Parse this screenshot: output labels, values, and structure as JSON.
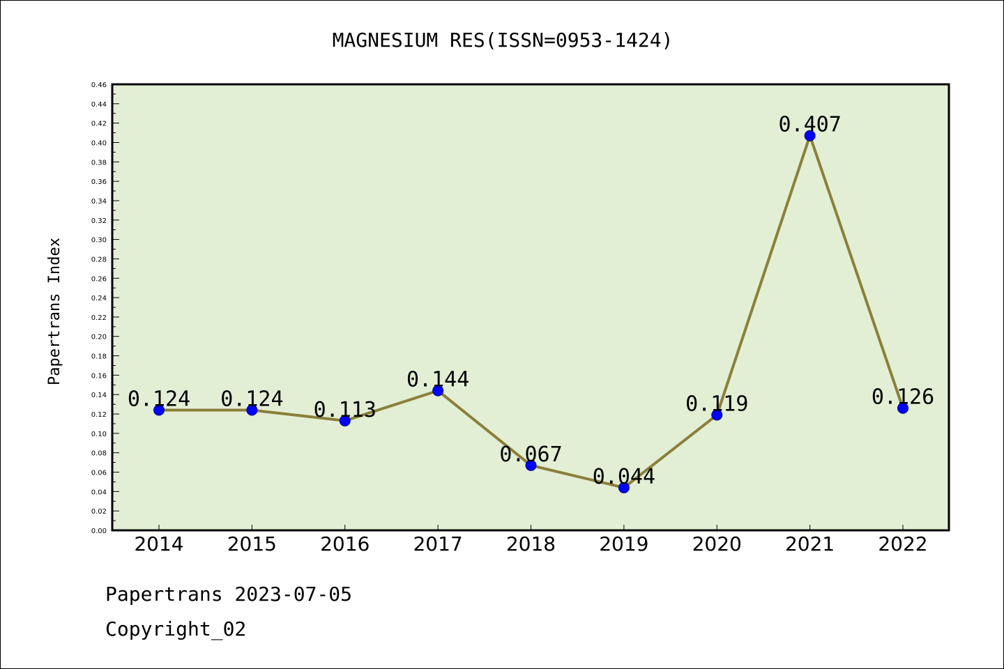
{
  "chart_data": {
    "type": "line",
    "title": "MAGNESIUM RES(ISSN=0953-1424)",
    "xlabel": "",
    "ylabel": "Papertrans Index",
    "categories": [
      "2014",
      "2015",
      "2016",
      "2017",
      "2018",
      "2019",
      "2020",
      "2021",
      "2022"
    ],
    "values": [
      0.124,
      0.124,
      0.113,
      0.144,
      0.067,
      0.044,
      0.119,
      0.407,
      0.126
    ],
    "data_labels": [
      "0.124",
      "0.124",
      "0.113",
      "0.144",
      "0.067",
      "0.044",
      "0.119",
      "0.407",
      "0.126"
    ],
    "ylim": [
      0,
      0.46
    ],
    "yticks": [
      "0.00",
      "0.02",
      "0.04",
      "0.06",
      "0.08",
      "0.10",
      "0.12",
      "0.14",
      "0.16",
      "0.18",
      "0.20",
      "0.22",
      "0.24",
      "0.26",
      "0.28",
      "0.30",
      "0.32",
      "0.34",
      "0.36",
      "0.38",
      "0.40",
      "0.42",
      "0.44",
      "0.46"
    ],
    "grid": false,
    "colors": {
      "plot_background": "#e2efd5",
      "line": "#8b7f3a",
      "marker": "#0000ff"
    }
  },
  "footer": {
    "date_line": "Papertrans 2023-07-05",
    "copyright_line": "Copyright_02"
  }
}
